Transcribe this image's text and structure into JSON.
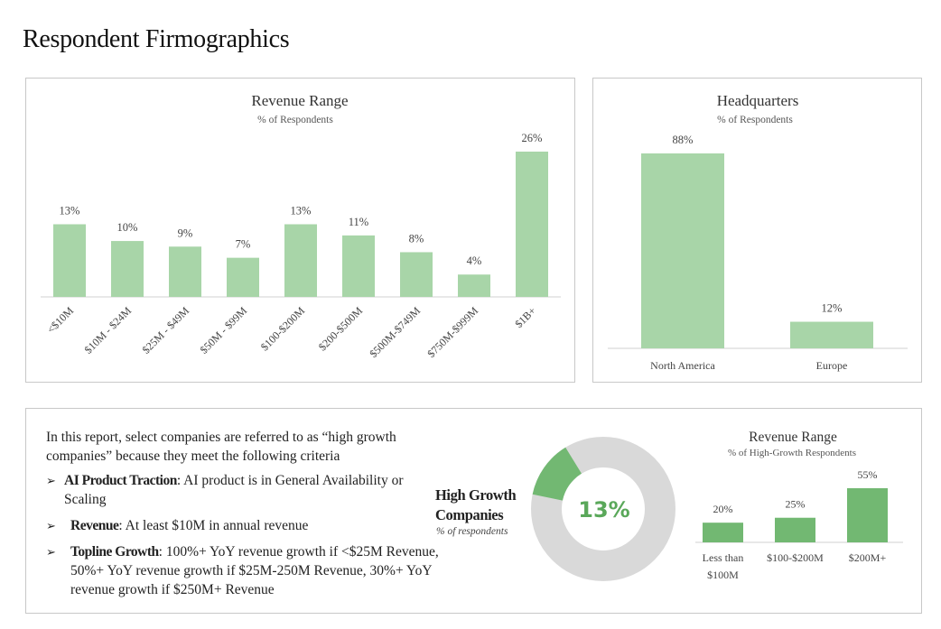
{
  "page": {
    "title": "Respondent Firmographics"
  },
  "criteria": {
    "intro": "In this report, select companies are referred to as “high growth companies” because they meet the following criteria",
    "items": [
      {
        "term": "AI Product Traction",
        "text": ": AI product is in General Availability or Scaling"
      },
      {
        "term": "Revenue",
        "text": ": At least $10M in annual revenue"
      },
      {
        "term": "Topline Growth",
        "text": ": 100%+ YoY revenue growth if <$25M Revenue, 50%+ YoY revenue growth if $25M-250M Revenue, 30%+ YoY revenue growth if $250M+ Revenue"
      }
    ]
  },
  "colors": {
    "bar_light": "#a8d5a8",
    "bar_dark": "#72b872",
    "donut_rest": "#d9d9d9",
    "donut_text": "#5aa85a"
  },
  "chart_data": [
    {
      "id": "revenue",
      "type": "bar",
      "title": "Revenue Range",
      "subtitle": "% of Respondents",
      "categories": [
        "<$10M",
        "$10M - $24M",
        "$25M - $49M",
        "$50M - $99M",
        "$100-$200M",
        "$200-$500M",
        "$500M-$749M",
        "$750M-$999M",
        "$1B+"
      ],
      "values": [
        13,
        10,
        9,
        7,
        13,
        11,
        8,
        4,
        26
      ],
      "labels": [
        "13%",
        "10%",
        "9%",
        "7%",
        "13%",
        "11%",
        "8%",
        "4%",
        "26%"
      ],
      "ylim": [
        0,
        26
      ]
    },
    {
      "id": "hq",
      "type": "bar",
      "title": "Headquarters",
      "subtitle": "% of Respondents",
      "categories": [
        "North America",
        "Europe"
      ],
      "values": [
        88,
        12
      ],
      "labels": [
        "88%",
        "12%"
      ],
      "ylim": [
        0,
        88
      ]
    },
    {
      "id": "donut",
      "type": "pie",
      "title": "High Growth Companies",
      "title_lines": [
        "High Growth",
        "Companies"
      ],
      "subtitle": "% of respondents",
      "value": 13,
      "center_label": "13%"
    },
    {
      "id": "hg_revenue",
      "type": "bar",
      "title": "Revenue Range",
      "subtitle": "% of High-Growth Respondents",
      "categories": [
        "Less than $100M",
        "$100-$200M",
        "$200M+"
      ],
      "category_lines": [
        [
          "Less than",
          "$100M"
        ],
        [
          "$100-$200M"
        ],
        [
          "$200M+"
        ]
      ],
      "values": [
        20,
        25,
        55
      ],
      "labels": [
        "20%",
        "25%",
        "55%"
      ],
      "ylim": [
        0,
        55
      ]
    }
  ]
}
